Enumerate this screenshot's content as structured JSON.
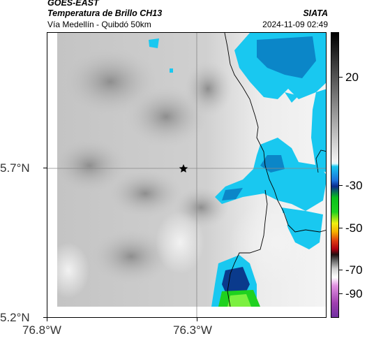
{
  "header": {
    "satellite": "GOES-EAST",
    "product": "Temperatura de Brillo CH13",
    "region": "Vía Medellín - Quibdó 50km",
    "organization": "SIATA",
    "timestamp": "2024-11-09 02:49"
  },
  "axes": {
    "x_ticks": [
      "76.8°W",
      "76.3°W"
    ],
    "y_ticks": [
      "5.7°N",
      "5.2°N"
    ]
  },
  "colorbar": {
    "ticks": [
      "20",
      "-30",
      "-50",
      "-70",
      "-90"
    ]
  },
  "map": {
    "marker_icon": "star-icon",
    "colors": {
      "cold_cyan": "#19c8f0",
      "cold_blue": "#0b86c8",
      "very_cold_blue": "#0a3a8c",
      "deep_green": "#1fd11f",
      "warm_gray": "#a8a8a8",
      "light_gray": "#e8e8e8"
    }
  }
}
